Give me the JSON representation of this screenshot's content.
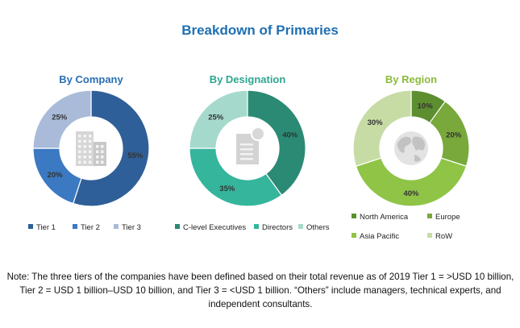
{
  "title": "Breakdown of Primaries",
  "chart_data": [
    {
      "type": "pie",
      "title": "By Company",
      "title_color": "#2a6eb4",
      "center_icon": "office-buildings-icon",
      "legend_position": "bottom",
      "series": [
        {
          "name": "Tier 1",
          "value": 55,
          "label": "55%",
          "color": "#2f5f98"
        },
        {
          "name": "Tier 2",
          "value": 20,
          "label": "20%",
          "color": "#3b79c2"
        },
        {
          "name": "Tier 3",
          "value": 25,
          "label": "25%",
          "color": "#a9bbd9"
        }
      ]
    },
    {
      "type": "pie",
      "title": "By Designation",
      "title_color": "#2ea58f",
      "center_icon": "document-badge-icon",
      "legend_position": "bottom",
      "series": [
        {
          "name": "C-level Executives",
          "value": 40,
          "label": "40%",
          "color": "#2b8a73"
        },
        {
          "name": "Directors",
          "value": 35,
          "label": "35%",
          "color": "#35b59c"
        },
        {
          "name": "Others",
          "value": 25,
          "label": "25%",
          "color": "#a5d9cc"
        }
      ]
    },
    {
      "type": "pie",
      "title": "By Region",
      "title_color": "#8bbb3c",
      "center_icon": "globe-icon",
      "legend_position": "bottom",
      "series": [
        {
          "name": "North America",
          "value": 10,
          "label": "10%",
          "color": "#5d8e2f"
        },
        {
          "name": "Europe",
          "value": 20,
          "label": "20%",
          "color": "#79a83b"
        },
        {
          "name": "Asia Pacific",
          "value": 40,
          "label": "40%",
          "color": "#8fc447"
        },
        {
          "name": "RoW",
          "value": 30,
          "label": "30%",
          "color": "#c6dca4"
        }
      ]
    }
  ],
  "note": "Note: The three tiers of the companies have been defined based on their total revenue as of 2019 Tier 1 = >USD 10 billion, Tier 2 = USD 1 billion–USD 10 billion, and Tier 3 = <USD 1 billion. “Others” include managers, technical experts, and independent consultants."
}
